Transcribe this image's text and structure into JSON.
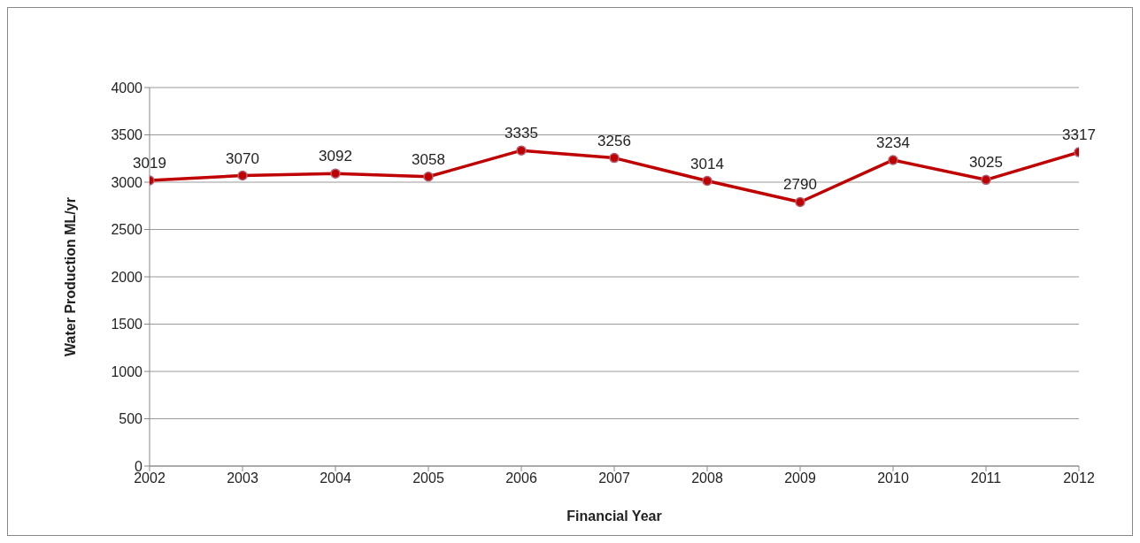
{
  "chart_data": {
    "type": "line",
    "xlabel": "Financial Year",
    "ylabel": "Water Production ML/yr",
    "x": [
      2002,
      2003,
      2004,
      2005,
      2006,
      2007,
      2008,
      2009,
      2010,
      2011,
      2012
    ],
    "series": [
      {
        "color": "#c00000",
        "values": [
          3019,
          3070,
          3092,
          3058,
          3335,
          3256,
          3014,
          2790,
          3234,
          3025,
          3317
        ]
      }
    ],
    "xlim": [
      2002,
      2012
    ],
    "xticks": [
      2002,
      2003,
      2004,
      2005,
      2006,
      2007,
      2008,
      2009,
      2010,
      2011,
      2012
    ],
    "ylim": [
      0,
      4000
    ],
    "yticks": [
      0,
      500,
      1000,
      1500,
      2000,
      2500,
      3000,
      3500,
      4000
    ],
    "grid": "y",
    "legend": false,
    "marker": "circle",
    "line_style": "solid",
    "data_labels": true
  }
}
